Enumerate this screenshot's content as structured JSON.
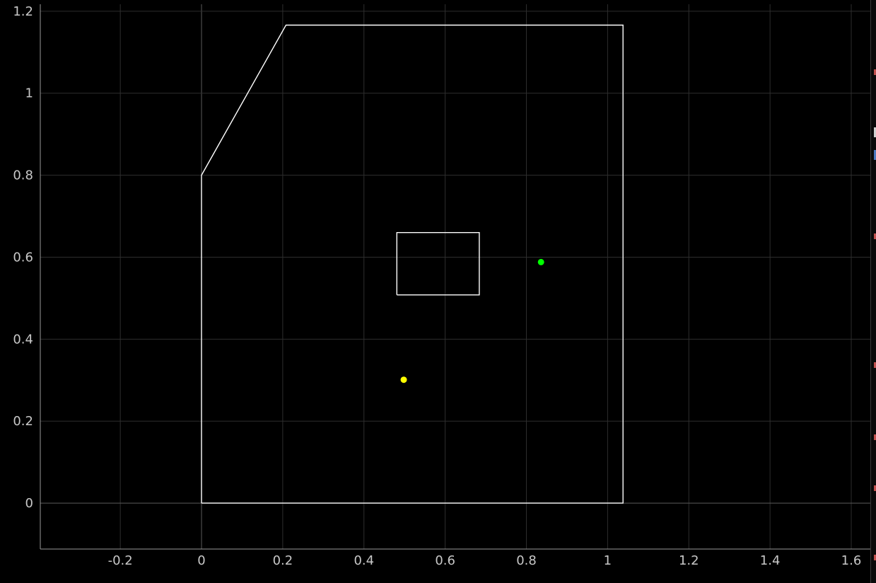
{
  "chart_data": {
    "type": "scatter",
    "title": "",
    "xlabel": "",
    "ylabel": "",
    "xlim": [
      -0.397,
      1.647
    ],
    "ylim": [
      -0.112,
      1.217
    ],
    "grid": true,
    "x_ticks": [
      -0.2,
      0,
      0.2,
      0.4,
      0.6,
      0.8,
      1,
      1.2,
      1.4,
      1.6
    ],
    "x_tick_labels": [
      "-0.2",
      "0",
      "0.2",
      "0.4",
      "0.6",
      "0.8",
      "1",
      "1.2",
      "1.4",
      "1.6"
    ],
    "y_ticks": [
      0,
      0.2,
      0.4,
      0.6,
      0.8,
      1,
      1.2
    ],
    "y_tick_labels": [
      "0",
      "0.2",
      "0.4",
      "0.6",
      "0.8",
      "1",
      "1.2"
    ],
    "shapes": [
      {
        "name": "outer-boundary",
        "kind": "polygon",
        "color": "#ffffff",
        "points": [
          [
            0,
            0
          ],
          [
            1.038,
            0
          ],
          [
            1.038,
            1.166
          ],
          [
            0.208,
            1.166
          ],
          [
            0,
            0.8
          ],
          [
            0,
            0
          ]
        ]
      },
      {
        "name": "inner-rectangle",
        "kind": "polygon",
        "color": "#ffffff",
        "points": [
          [
            0.481,
            0.508
          ],
          [
            0.684,
            0.508
          ],
          [
            0.684,
            0.66
          ],
          [
            0.481,
            0.66
          ],
          [
            0.481,
            0.508
          ]
        ]
      }
    ],
    "points": [
      {
        "name": "yellow-point",
        "x": 0.498,
        "y": 0.301,
        "color": "#ffff00"
      },
      {
        "name": "green-point",
        "x": 0.836,
        "y": 0.588,
        "color": "#00ff00"
      }
    ]
  }
}
